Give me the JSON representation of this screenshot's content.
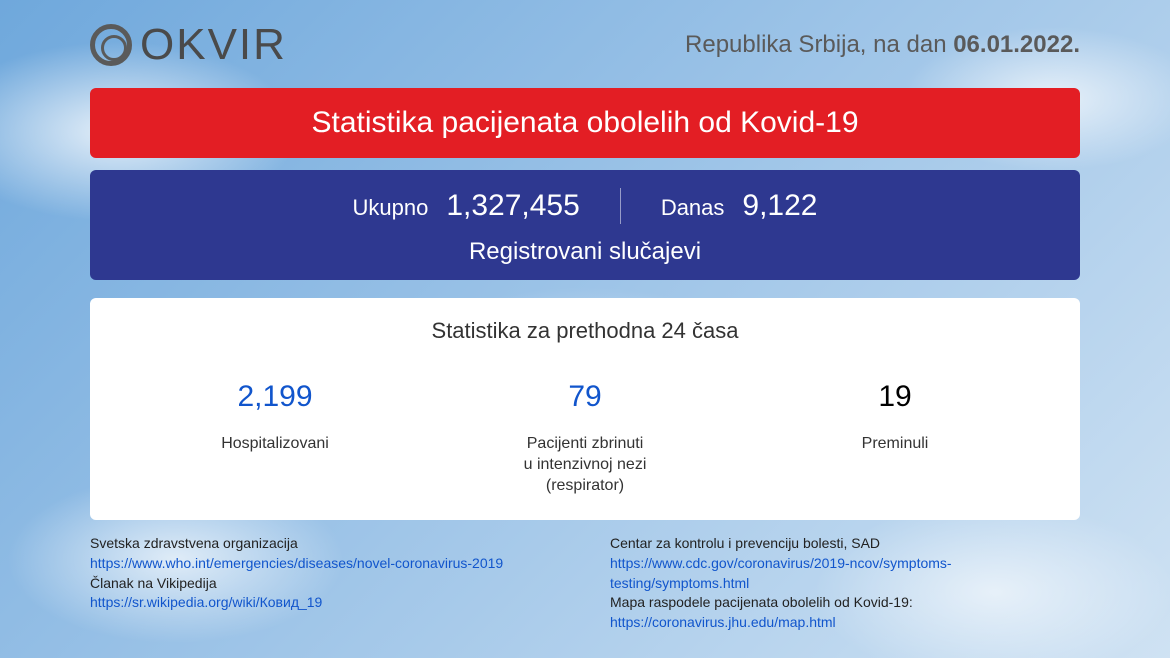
{
  "logo": {
    "text": "OKVIR"
  },
  "header": {
    "prefix": "Republika Srbija, na dan ",
    "date": "06.01.2022."
  },
  "red_banner": {
    "title": "Statistika pacijenata obolelih od Kovid-19"
  },
  "blue_banner": {
    "total_label": "Ukupno",
    "total_value": "1,327,455",
    "today_label": "Danas",
    "today_value": "9,122",
    "subtitle": "Registrovani slučajevi",
    "background_color": "#2e3890"
  },
  "white_panel": {
    "title": "Statistika za prethodna 24 časa",
    "stats": [
      {
        "value": "2,199",
        "label": "Hospitalizovani",
        "color": "#1155cc"
      },
      {
        "value": "79",
        "label": "Pacijenti zbrinuti\nu intenzivnoj nezi\n(respirator)",
        "color": "#1155cc"
      },
      {
        "value": "19",
        "label": "Preminuli",
        "color": "#000000"
      }
    ]
  },
  "footer": {
    "left": {
      "org1_title": "Svetska zdravstvena organizacija",
      "org1_link": "https://www.who.int/emergencies/diseases/novel-coronavirus-2019",
      "org2_title": "Članak na Vikipedija",
      "org2_link": "https://sr.wikipedia.org/wiki/Ковид_19"
    },
    "right": {
      "org1_title": "Centar za kontrolu i prevenciju bolesti, SAD",
      "org1_link": "https://www.cdc.gov/coronavirus/2019-ncov/symptoms-testing/symptoms.html",
      "org2_title": "Mapa raspodele pacijenata obolelih od Kovid-19:",
      "org2_link": "https://coronavirus.jhu.edu/map.html"
    }
  },
  "colors": {
    "red": "#e31e24",
    "blue": "#2e3890",
    "link_blue": "#1155cc",
    "text_gray": "#5a5a5a"
  }
}
